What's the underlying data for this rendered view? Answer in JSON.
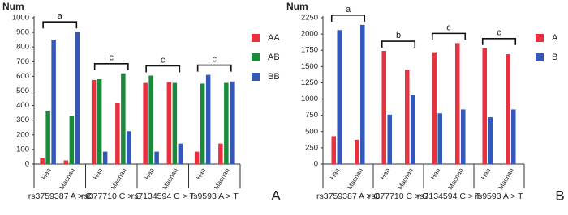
{
  "chart_data": [
    {
      "type": "bar",
      "y_label": "Num",
      "panel_label": "A",
      "groups": [
        "rs3759387 A > C",
        "rs877710 C > G",
        "rs7134594 C > T",
        "rs9593 A > T"
      ],
      "categories": [
        "Han",
        "Maonan",
        "Han",
        "Maonan",
        "Han",
        "Maonan",
        "Han",
        "Maonan"
      ],
      "annotations": [
        "a",
        "c",
        "c",
        "c"
      ],
      "series": [
        {
          "name": "AA",
          "color": "#e8303f",
          "values": [
            40,
            25,
            575,
            415,
            555,
            560,
            85,
            140
          ]
        },
        {
          "name": "AB",
          "color": "#1a8a3a",
          "values": [
            365,
            330,
            580,
            620,
            605,
            555,
            550,
            555
          ]
        },
        {
          "name": "BB",
          "color": "#3358b8",
          "values": [
            850,
            905,
            85,
            225,
            85,
            140,
            610,
            565
          ]
        }
      ],
      "ylim": [
        0,
        1000
      ],
      "yticks": [
        0,
        100,
        200,
        300,
        400,
        500,
        600,
        700,
        800,
        900,
        1000
      ]
    },
    {
      "type": "bar",
      "y_label": "Num",
      "panel_label": "B",
      "groups": [
        "rs3759387 A > C",
        "rs877710 C > G",
        "rs7134594 C > T",
        "rs9593 A > T"
      ],
      "categories": [
        "Han",
        "Maonan",
        "Han",
        "Maonan",
        "Han",
        "Maonan",
        "Han",
        "Maonan"
      ],
      "annotations": [
        "a",
        "b",
        "c",
        "c"
      ],
      "series": [
        {
          "name": "A",
          "color": "#e8303f",
          "values": [
            430,
            375,
            1740,
            1450,
            1720,
            1860,
            1780,
            1690
          ]
        },
        {
          "name": "B",
          "color": "#3358b8",
          "values": [
            2060,
            2140,
            760,
            1060,
            780,
            840,
            720,
            840
          ]
        }
      ],
      "ylim": [
        0,
        2250
      ],
      "yticks": [
        0,
        250,
        500,
        750,
        1000,
        1250,
        1500,
        1750,
        2000,
        2250
      ]
    }
  ]
}
